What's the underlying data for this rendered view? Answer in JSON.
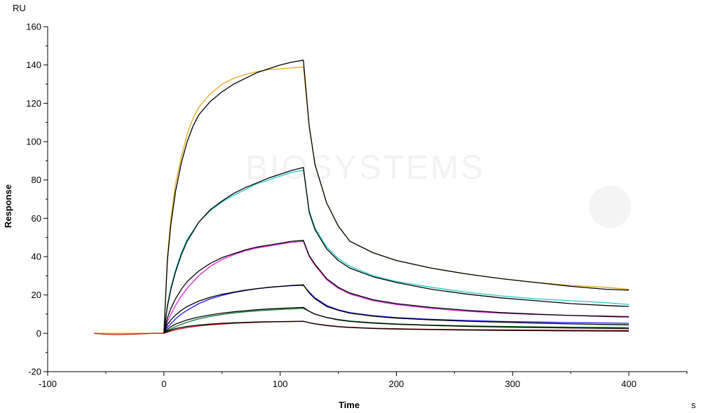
{
  "chart_data": {
    "type": "line",
    "title": "",
    "xlabel": "Time",
    "ylabel": "Response",
    "x_unit": "s",
    "y_unit": "RU",
    "xlim": [
      -100,
      450
    ],
    "ylim": [
      -20,
      160
    ],
    "x_ticks": [
      -100,
      0,
      100,
      200,
      300,
      400
    ],
    "y_ticks": [
      -20,
      0,
      20,
      40,
      60,
      80,
      100,
      120,
      140,
      160
    ],
    "grid": false,
    "legend": "none",
    "watermark": "BIOSYSTEMS",
    "series": [
      {
        "color": "#e6a817",
        "x": [
          -60,
          0,
          3,
          6,
          10,
          15,
          20,
          25,
          30,
          40,
          50,
          60,
          70,
          80,
          90,
          100,
          110,
          120,
          125,
          130,
          140,
          150,
          160,
          180,
          200,
          230,
          260,
          290,
          320,
          350,
          380,
          400
        ],
        "y": [
          0,
          0,
          40,
          60,
          78,
          92,
          104,
          112,
          118,
          125,
          130,
          133,
          135,
          136.5,
          137.5,
          138,
          138.5,
          139,
          108,
          88,
          68,
          56,
          48,
          42,
          38,
          34,
          31,
          28.5,
          26.5,
          25,
          24,
          23
        ]
      },
      {
        "color": "#000000",
        "x": [
          0,
          3,
          6,
          10,
          15,
          20,
          25,
          30,
          40,
          50,
          60,
          70,
          80,
          90,
          100,
          110,
          120,
          125,
          130,
          140,
          150,
          160,
          180,
          200,
          230,
          260,
          290,
          320,
          350,
          380,
          400
        ],
        "y": [
          0,
          38,
          57,
          74,
          89,
          100,
          108,
          114,
          121,
          126,
          130,
          133,
          136,
          138,
          140,
          141.5,
          142.5,
          108,
          88,
          68,
          56,
          48,
          42,
          38,
          34,
          31,
          28.5,
          26.5,
          24.5,
          23,
          22.5
        ]
      },
      {
        "color": "#1ec8c8",
        "x": [
          0,
          3,
          6,
          10,
          15,
          20,
          30,
          40,
          50,
          60,
          70,
          80,
          90,
          100,
          110,
          120,
          125,
          130,
          140,
          150,
          160,
          180,
          200,
          230,
          260,
          290,
          320,
          350,
          380,
          400
        ],
        "y": [
          0,
          15,
          24,
          33,
          42,
          49,
          58,
          64,
          68.5,
          72,
          75,
          78,
          80,
          82,
          84,
          85,
          64,
          55,
          45,
          39,
          35,
          30,
          27,
          24,
          21.5,
          19.5,
          18,
          17,
          16,
          15
        ]
      },
      {
        "color": "#000000",
        "x": [
          0,
          3,
          6,
          10,
          15,
          20,
          30,
          40,
          50,
          60,
          70,
          80,
          90,
          100,
          110,
          120,
          125,
          130,
          140,
          150,
          160,
          180,
          200,
          230,
          260,
          290,
          320,
          350,
          380,
          400
        ],
        "y": [
          0,
          14,
          23,
          32,
          41,
          48,
          58,
          64.5,
          69,
          73,
          76,
          78.5,
          81,
          83,
          85,
          86.5,
          63,
          54,
          44,
          38,
          34,
          29.5,
          26.5,
          23,
          20.5,
          18.5,
          17,
          15.5,
          14.5,
          14
        ]
      },
      {
        "color": "#e020e0",
        "x": [
          0,
          3,
          6,
          10,
          15,
          20,
          30,
          40,
          50,
          60,
          70,
          80,
          90,
          100,
          110,
          120,
          125,
          130,
          140,
          150,
          160,
          180,
          200,
          230,
          260,
          290,
          320,
          350,
          380,
          400
        ],
        "y": [
          0,
          6,
          10,
          14.5,
          19.5,
          23.5,
          30,
          35,
          38.5,
          41,
          43,
          44.5,
          45.5,
          46.5,
          47.5,
          48,
          40,
          35.5,
          28,
          23.5,
          20.5,
          17,
          15,
          13,
          11.5,
          10.5,
          9.8,
          9.3,
          9,
          8.8
        ]
      },
      {
        "color": "#000000",
        "x": [
          0,
          3,
          6,
          10,
          15,
          20,
          30,
          40,
          50,
          60,
          70,
          80,
          90,
          100,
          110,
          120,
          125,
          130,
          140,
          150,
          160,
          180,
          200,
          230,
          260,
          290,
          320,
          350,
          380,
          400
        ],
        "y": [
          0,
          8,
          13,
          18,
          23,
          27,
          32.5,
          36.5,
          39.5,
          41.5,
          43.5,
          45,
          46,
          47,
          48,
          48.5,
          40.5,
          36,
          28.5,
          24,
          21,
          17.5,
          15.5,
          13.5,
          12,
          10.8,
          10,
          9.3,
          8.8,
          8.5
        ]
      },
      {
        "color": "#1a1aff",
        "x": [
          0,
          3,
          6,
          10,
          15,
          20,
          30,
          40,
          50,
          60,
          70,
          80,
          90,
          100,
          110,
          120,
          125,
          130,
          140,
          150,
          160,
          180,
          200,
          230,
          260,
          290,
          320,
          350,
          380,
          400
        ],
        "y": [
          0,
          3,
          5,
          7.5,
          10,
          12,
          15.5,
          18,
          19.8,
          21.2,
          22.3,
          23.2,
          23.9,
          24.4,
          24.8,
          25,
          21.5,
          18.5,
          14.5,
          12.3,
          10.8,
          9.2,
          8.2,
          7.3,
          6.7,
          6.2,
          5.9,
          5.6,
          5.4,
          5.2
        ]
      },
      {
        "color": "#000000",
        "x": [
          0,
          3,
          6,
          10,
          15,
          20,
          30,
          40,
          50,
          60,
          70,
          80,
          90,
          100,
          110,
          120,
          125,
          130,
          140,
          150,
          160,
          180,
          200,
          230,
          260,
          290,
          320,
          350,
          380,
          400
        ],
        "y": [
          0,
          4.5,
          7,
          9.5,
          12,
          14,
          16.8,
          18.8,
          20.3,
          21.5,
          22.5,
          23.3,
          24,
          24.5,
          25,
          25.3,
          21,
          18,
          14,
          12,
          10.5,
          8.9,
          7.9,
          7,
          6.3,
          5.8,
          5.3,
          4.9,
          4.6,
          4.4
        ]
      },
      {
        "color": "#0a7a2a",
        "x": [
          0,
          5,
          10,
          20,
          30,
          40,
          50,
          60,
          70,
          80,
          90,
          100,
          110,
          120,
          125,
          130,
          140,
          150,
          160,
          180,
          200,
          230,
          260,
          290,
          320,
          350,
          380,
          400
        ],
        "y": [
          0,
          2,
          3.5,
          5.8,
          7.5,
          8.8,
          9.8,
          10.6,
          11.2,
          11.7,
          12.1,
          12.4,
          12.7,
          13,
          11.5,
          10,
          8.3,
          7.2,
          6.4,
          5.5,
          4.9,
          4.3,
          3.9,
          3.6,
          3.4,
          3.2,
          3.1,
          3
        ]
      },
      {
        "color": "#000000",
        "x": [
          0,
          5,
          10,
          20,
          30,
          40,
          50,
          60,
          70,
          80,
          90,
          100,
          110,
          120,
          125,
          130,
          140,
          150,
          160,
          180,
          200,
          230,
          260,
          290,
          320,
          350,
          380,
          400
        ],
        "y": [
          0,
          3,
          4.8,
          7,
          8.5,
          9.6,
          10.5,
          11.2,
          11.8,
          12.3,
          12.7,
          13,
          13.3,
          13.5,
          11.5,
          10,
          8.2,
          7,
          6.2,
          5.3,
          4.7,
          4.1,
          3.6,
          3.3,
          3,
          2.8,
          2.6,
          2.5
        ]
      },
      {
        "color": "#d01818",
        "x": [
          -60,
          -50,
          -40,
          -30,
          -20,
          -10,
          0,
          5,
          10,
          20,
          30,
          40,
          50,
          60,
          70,
          80,
          90,
          100,
          110,
          120,
          125,
          130,
          140,
          150,
          160,
          180,
          200,
          230,
          260,
          290,
          320,
          350,
          380,
          400
        ],
        "y": [
          0,
          -0.5,
          -0.7,
          -0.5,
          -0.3,
          0,
          0,
          1,
          1.8,
          3,
          3.8,
          4.4,
          4.8,
          5.2,
          5.5,
          5.7,
          5.9,
          6,
          6.1,
          6.2,
          5.5,
          5,
          4.2,
          3.6,
          3.2,
          2.7,
          2.4,
          2.1,
          1.9,
          1.8,
          1.7,
          1.6,
          1.5,
          1.5
        ]
      },
      {
        "color": "#000000",
        "x": [
          0,
          5,
          10,
          20,
          30,
          40,
          50,
          60,
          70,
          80,
          90,
          100,
          110,
          120,
          125,
          130,
          140,
          150,
          160,
          180,
          200,
          230,
          260,
          290,
          320,
          350,
          380,
          400
        ],
        "y": [
          0,
          1.5,
          2.5,
          3.6,
          4.3,
          4.8,
          5.2,
          5.5,
          5.7,
          5.9,
          6,
          6.1,
          6.2,
          6.3,
          5.5,
          4.9,
          4,
          3.4,
          3,
          2.5,
          2.2,
          1.9,
          1.7,
          1.5,
          1.4,
          1.3,
          1.2,
          1.1
        ]
      }
    ]
  }
}
